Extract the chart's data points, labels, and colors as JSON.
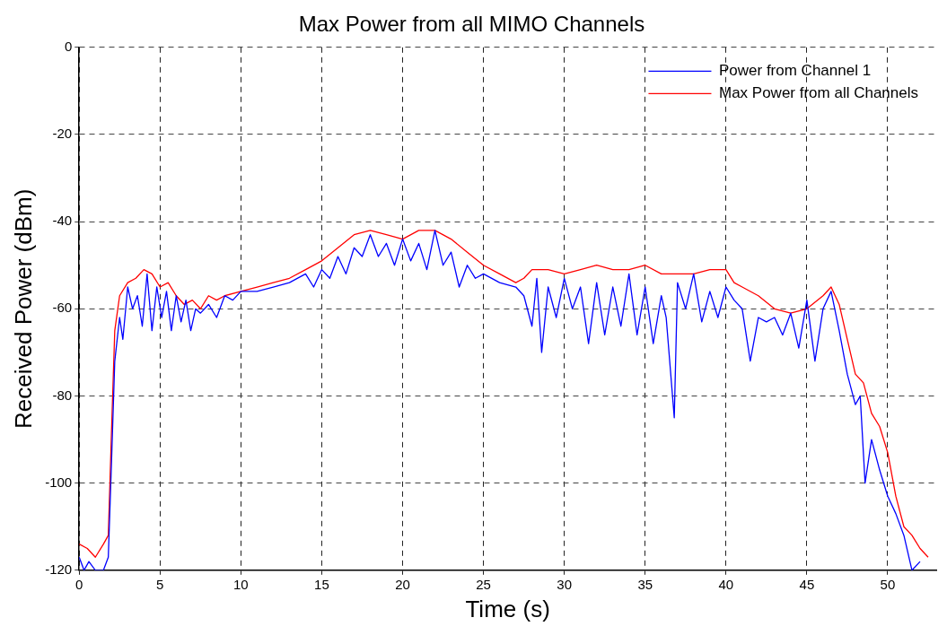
{
  "chart_data": {
    "type": "line",
    "title": "Max Power from all MIMO Channels",
    "xlabel": "Time (s)",
    "ylabel": "Received Power (dBm)",
    "xlim": [
      0,
      53
    ],
    "xticks": [
      0,
      5,
      10,
      15,
      20,
      25,
      30,
      35,
      40,
      45,
      50
    ],
    "ylim": [
      -120,
      0
    ],
    "yticks": [
      -120,
      -100,
      -80,
      -60,
      -40,
      -20,
      0
    ],
    "grid": true,
    "legend": "top right",
    "marker": "none",
    "line_style": "solid",
    "series": [
      {
        "name": "Power from Channel 1",
        "color": "#0000ff",
        "x": [
          0,
          0.3,
          0.6,
          1,
          1.5,
          1.8,
          2,
          2.2,
          2.5,
          2.7,
          3,
          3.3,
          3.6,
          3.9,
          4.2,
          4.5,
          4.8,
          5.1,
          5.4,
          5.7,
          6,
          6.3,
          6.6,
          6.9,
          7.2,
          7.5,
          8,
          8.5,
          9,
          9.5,
          10,
          11,
          12,
          13,
          14,
          14.5,
          15,
          15.5,
          16,
          16.5,
          17,
          17.5,
          18,
          18.5,
          19,
          19.5,
          20,
          20.5,
          21,
          21.5,
          22,
          22.5,
          23,
          23.5,
          24,
          24.5,
          25,
          26,
          27,
          27.5,
          28,
          28.3,
          28.6,
          29,
          29.5,
          30,
          30.5,
          31,
          31.5,
          32,
          32.5,
          33,
          33.5,
          34,
          34.5,
          35,
          35.5,
          36,
          36.3,
          36.8,
          37,
          37.5,
          38,
          38.5,
          39,
          39.5,
          40,
          40.5,
          41,
          41.5,
          42,
          42.5,
          43,
          43.5,
          44,
          44.5,
          45,
          45.5,
          46,
          46.5,
          47,
          47.5,
          48,
          48.3,
          48.6,
          49,
          49.5,
          50,
          50.5,
          51,
          51.5,
          52
        ],
        "values": [
          -117,
          -120,
          -118,
          -120,
          -120,
          -117,
          -95,
          -72,
          -62,
          -67,
          -55,
          -60,
          -57,
          -64,
          -52,
          -65,
          -55,
          -62,
          -56,
          -65,
          -57,
          -63,
          -58,
          -65,
          -60,
          -61,
          -59,
          -62,
          -57,
          -58,
          -56,
          -56,
          -55,
          -54,
          -52,
          -55,
          -51,
          -53,
          -48,
          -52,
          -46,
          -48,
          -43,
          -48,
          -45,
          -50,
          -44,
          -49,
          -45,
          -51,
          -42,
          -50,
          -47,
          -55,
          -50,
          -53,
          -52,
          -54,
          -55,
          -57,
          -64,
          -53,
          -70,
          -55,
          -62,
          -53,
          -60,
          -55,
          -68,
          -54,
          -66,
          -55,
          -64,
          -52,
          -66,
          -55,
          -68,
          -57,
          -62,
          -85,
          -54,
          -60,
          -52,
          -63,
          -56,
          -62,
          -55,
          -58,
          -60,
          -72,
          -62,
          -63,
          -62,
          -66,
          -61,
          -69,
          -58,
          -72,
          -60,
          -56,
          -65,
          -75,
          -82,
          -80,
          -100,
          -90,
          -97,
          -103,
          -107,
          -112,
          -120,
          -118
        ]
      },
      {
        "name": "Max Power from all Channels",
        "color": "#ff0000",
        "x": [
          0,
          0.5,
          1,
          1.5,
          1.8,
          2,
          2.2,
          2.5,
          3,
          3.5,
          4,
          4.5,
          5,
          5.5,
          6,
          6.5,
          7,
          7.5,
          8,
          8.5,
          9,
          10,
          11,
          12,
          13,
          14,
          15,
          16,
          17,
          18,
          19,
          20,
          21,
          22,
          23,
          24,
          25,
          26,
          27,
          27.5,
          28,
          29,
          30,
          31,
          32,
          33,
          34,
          35,
          36,
          37,
          38,
          39,
          40,
          40.5,
          41,
          42,
          43,
          44,
          45,
          46,
          46.5,
          47,
          47.5,
          48,
          48.5,
          49,
          49.5,
          50,
          50.5,
          51,
          51.5,
          52,
          52.5
        ],
        "values": [
          -114,
          -115,
          -117,
          -114,
          -112,
          -88,
          -65,
          -57,
          -54,
          -53,
          -51,
          -52,
          -55,
          -54,
          -57,
          -59,
          -58,
          -60,
          -57,
          -58,
          -57,
          -56,
          -55,
          -54,
          -53,
          -51,
          -49,
          -46,
          -43,
          -42,
          -43,
          -44,
          -42,
          -42,
          -44,
          -47,
          -50,
          -52,
          -54,
          -53,
          -51,
          -51,
          -52,
          -51,
          -50,
          -51,
          -51,
          -50,
          -52,
          -52,
          -52,
          -51,
          -51,
          -54,
          -55,
          -57,
          -60,
          -61,
          -60,
          -57,
          -55,
          -59,
          -67,
          -75,
          -77,
          -84,
          -87,
          -93,
          -103,
          -110,
          -112,
          -115,
          -117
        ]
      }
    ]
  }
}
